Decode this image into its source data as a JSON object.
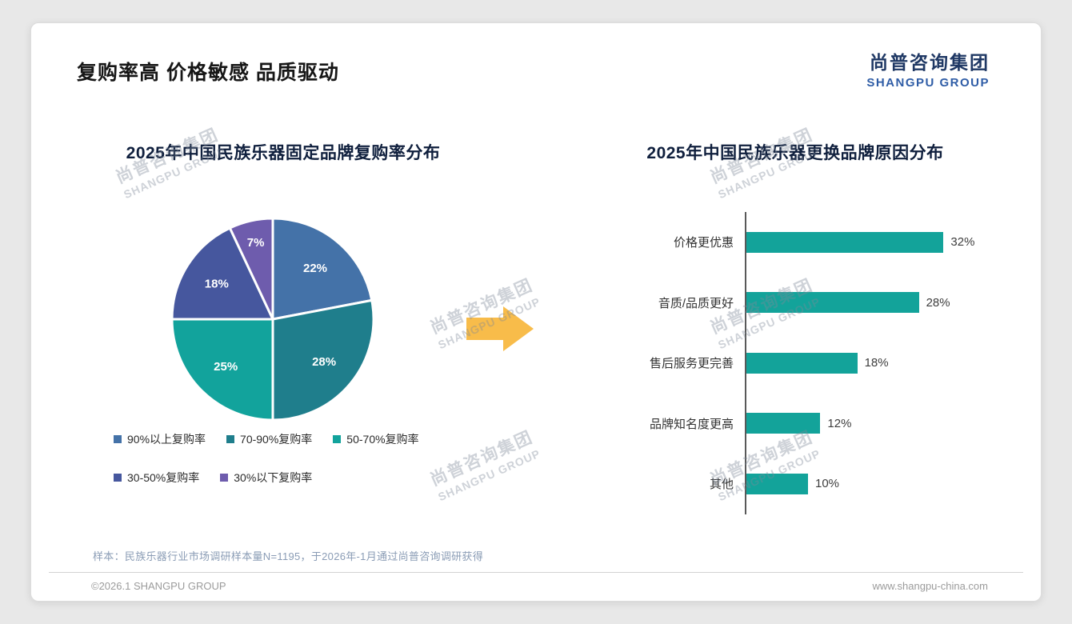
{
  "page": {
    "title": "复购率高 价格敏感 品质驱动",
    "logo": {
      "cn": "尚普咨询集团",
      "en": "SHANGPU GROUP"
    },
    "watermark": {
      "cn": "尚普咨询集团",
      "en": "SHANGPU GROUP"
    },
    "footer": {
      "sample_note": "样本：民族乐器行业市场调研样本量N=1195，于2026年-1月通过尚普咨询调研获得",
      "copyright": "©2026.1 SHANGPU GROUP",
      "website": "www.shangpu-china.com"
    }
  },
  "arrow_color": "#F8BC4A",
  "chart_data": [
    {
      "type": "pie",
      "title": "2025年中国民族乐器固定品牌复购率分布",
      "labels": [
        "90%以上复购率",
        "70-90%复购率",
        "50-70%复购率",
        "30-50%复购率",
        "30%以下复购率"
      ],
      "values": [
        22,
        28,
        25,
        18,
        7
      ],
      "value_labels": [
        "22%",
        "28%",
        "25%",
        "18%",
        "7%"
      ],
      "colors": [
        "#4472A8",
        "#1F7E8C",
        "#12A39C",
        "#46579E",
        "#6E5CAD"
      ],
      "legend_position": "bottom",
      "start_angle_deg": 0,
      "direction": "clockwise"
    },
    {
      "type": "bar",
      "orientation": "horizontal",
      "title": "2025年中国民族乐器更换品牌原因分布",
      "categories": [
        "价格更优惠",
        "音质/品质更好",
        "售后服务更完善",
        "品牌知名度更高",
        "其他"
      ],
      "values": [
        32,
        28,
        18,
        12,
        10
      ],
      "value_labels": [
        "32%",
        "28%",
        "18%",
        "12%",
        "10%"
      ],
      "bar_color": "#13A39A",
      "xlim": [
        0,
        35
      ],
      "grid": false,
      "axis_line": true
    }
  ]
}
